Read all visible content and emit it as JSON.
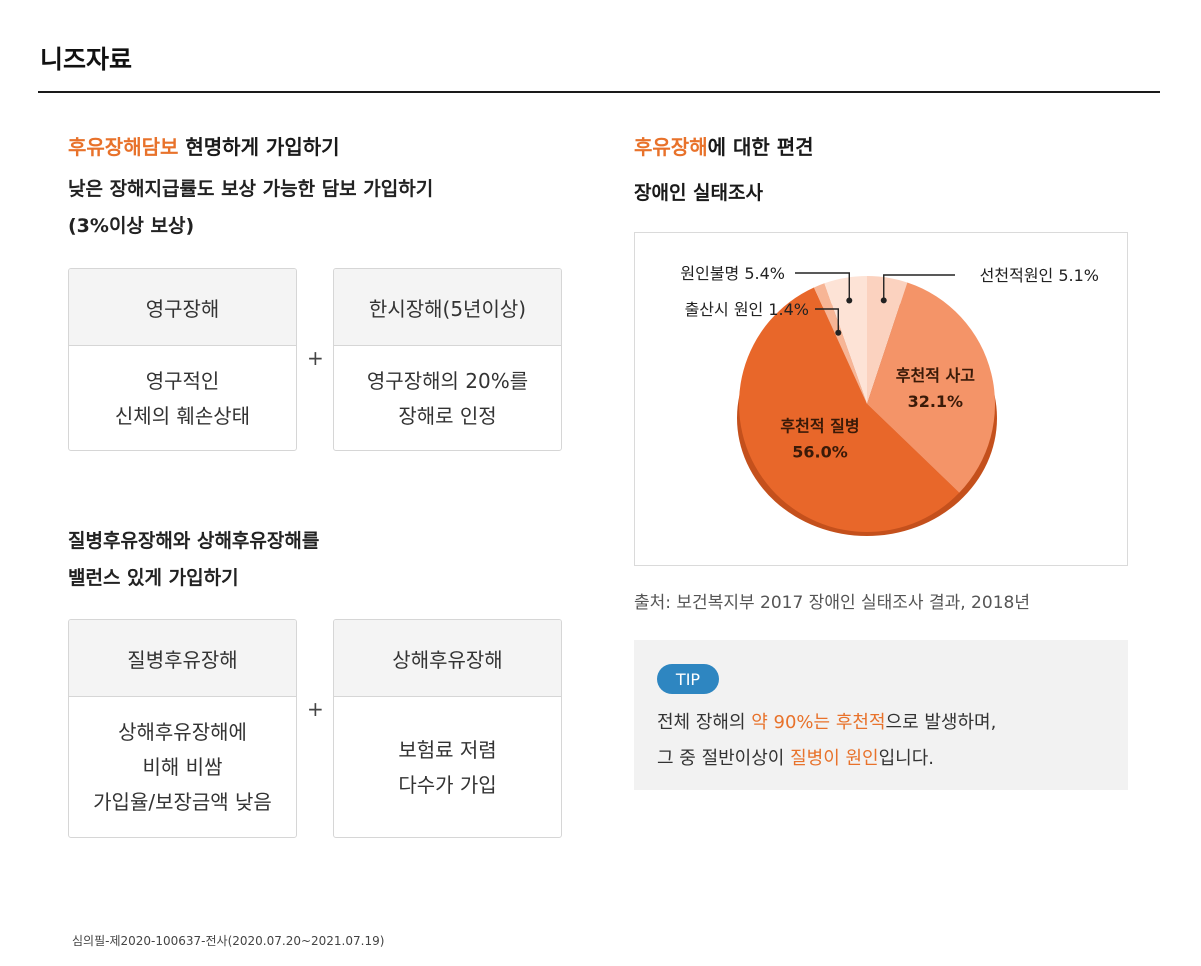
{
  "page": {
    "title": "니즈자료",
    "footnote": "심의필-제2020-100637-전사(2020.07.20~2021.07.19)"
  },
  "left": {
    "section1": {
      "heading_accent": "후유장해담보",
      "heading_rest": " 현명하게 가입하기",
      "sub_line1": "낮은 장해지급률도 보상 가능한 담보 가입하기",
      "sub_line2": "(3%이상 보상)",
      "cards": [
        {
          "title": "영구장해",
          "body": [
            "영구적인",
            "신체의 훼손상태"
          ]
        },
        {
          "title": "한시장해(5년이상)",
          "body": [
            "영구장해의 20%를",
            "장해로 인정"
          ]
        }
      ],
      "plus": "+"
    },
    "section2": {
      "sub_line1": "질병후유장해와 상해후유장해를",
      "sub_line2": "밸런스 있게 가입하기",
      "cards": [
        {
          "title": "질병후유장해",
          "body": [
            "상해후유장해에",
            "비해 비쌈",
            "가입율/보장금액 낮음"
          ]
        },
        {
          "title": "상해후유장해",
          "body": [
            "보험료 저렴",
            "다수가 가입"
          ]
        }
      ],
      "plus": "+"
    }
  },
  "right": {
    "heading_accent": "후유장해",
    "heading_rest": "에 대한 편견",
    "subheading": "장애인 실태조사",
    "source": "출처: 보건복지부 2017 장애인 실태조사 결과, 2018년",
    "tip": {
      "badge": "TIP",
      "line1_pre": "전체 장해의 ",
      "line1_accent": "약 90%는 후천적",
      "line1_post": "으로 발생하며,",
      "line2_pre": "그 중 절반이상이 ",
      "line2_accent": "질병이 원인",
      "line2_post": "입니다."
    }
  },
  "chart_data": {
    "type": "pie",
    "slices": [
      {
        "label": "선천적원인",
        "value": 5.1,
        "display": "선천적원인 5.1%",
        "color": "#fbd2bf"
      },
      {
        "label": "후천적 사고",
        "value": 32.1,
        "display": "32.1%",
        "color": "#f49468"
      },
      {
        "label": "후천적 질병",
        "value": 56.0,
        "display": "56.0%",
        "color": "#e8672a"
      },
      {
        "label": "출산시 원인",
        "value": 1.4,
        "display": "출산시 원인 1.4%",
        "color": "#f7b595"
      },
      {
        "label": "원인불명",
        "value": 5.4,
        "display": "원인불명 5.4%",
        "color": "#fde3d6"
      }
    ],
    "legend": "none",
    "colors": {
      "accent": "#e8722b",
      "tip_badge": "#2e86c1"
    }
  }
}
